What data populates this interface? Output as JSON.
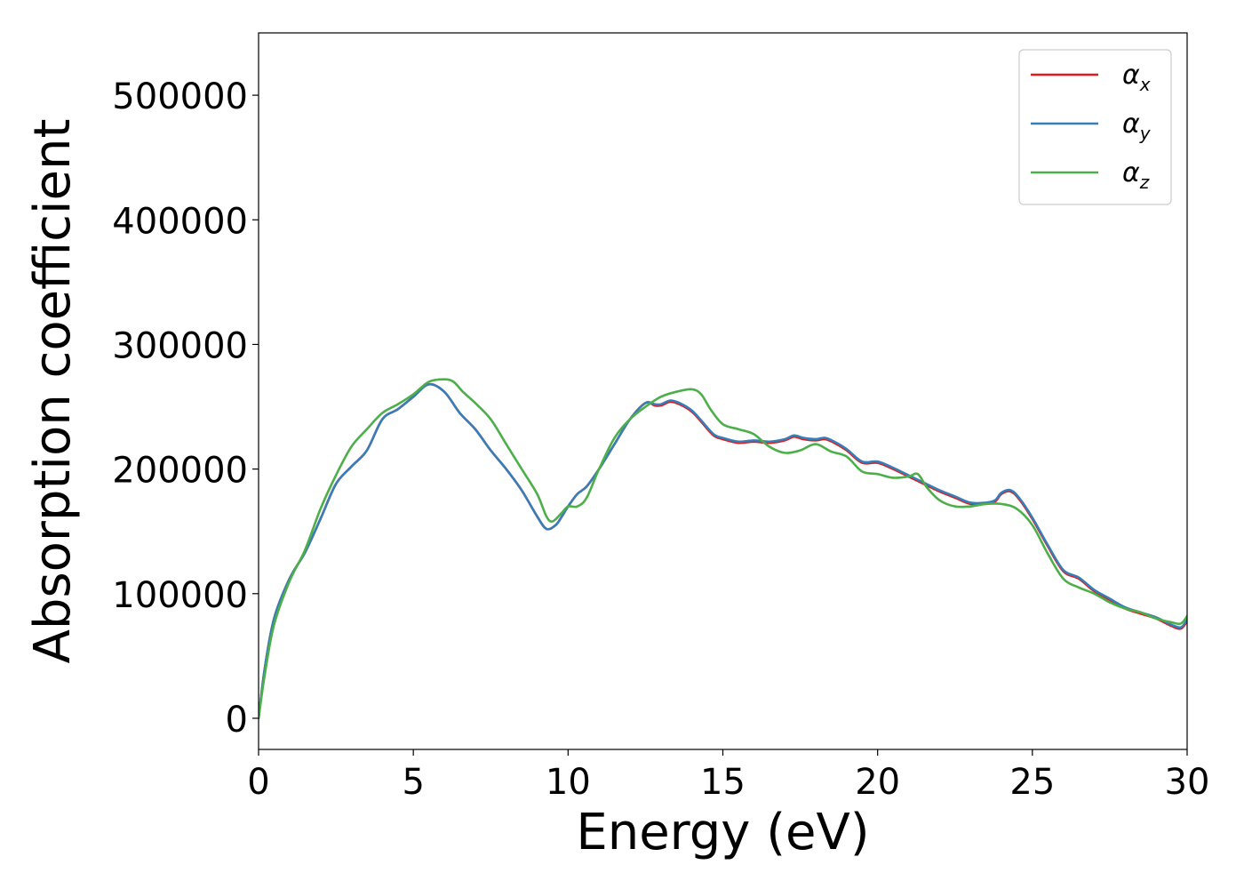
{
  "chart_data": {
    "type": "line",
    "title": "",
    "xlabel": "Energy (eV)",
    "ylabel": "Absorption coefficient",
    "xlim": [
      0,
      30
    ],
    "ylim": [
      -25000,
      550000
    ],
    "xticks": [
      0,
      5,
      10,
      15,
      20,
      25,
      30
    ],
    "yticks": [
      0,
      100000,
      200000,
      300000,
      400000,
      500000
    ],
    "grid": false,
    "legend_position": "top-right",
    "series": [
      {
        "name": "α",
        "subscript": "x",
        "color": "#e41a1c",
        "x": [
          0,
          0.2,
          0.5,
          1,
          1.5,
          2,
          2.5,
          3,
          3.5,
          4,
          4.5,
          5,
          5.5,
          6,
          6.5,
          7,
          7.5,
          8,
          8.5,
          9,
          9.3,
          9.6,
          9.8,
          10,
          10.3,
          10.6,
          11,
          11.5,
          12,
          12.5,
          12.8,
          13,
          13.3,
          13.6,
          14,
          14.3,
          14.7,
          15,
          15.5,
          16,
          16.5,
          17,
          17.3,
          17.6,
          18,
          18.3,
          18.6,
          19,
          19.5,
          20,
          20.5,
          21,
          21.5,
          22,
          22.5,
          23,
          23.5,
          23.8,
          24,
          24.3,
          24.6,
          25,
          25.5,
          26,
          26.5,
          27,
          27.5,
          28,
          28.5,
          29,
          29.5,
          29.8,
          30
        ],
        "y": [
          0,
          40000,
          80000,
          112000,
          133000,
          160000,
          188000,
          202000,
          215000,
          240000,
          248000,
          258000,
          268000,
          262000,
          245000,
          232000,
          215000,
          200000,
          183000,
          162000,
          152000,
          155000,
          162000,
          170000,
          180000,
          186000,
          200000,
          220000,
          240000,
          253000,
          251000,
          251000,
          254000,
          252000,
          246000,
          238000,
          227000,
          224000,
          221000,
          222000,
          221000,
          223000,
          226000,
          224000,
          223000,
          224000,
          221000,
          215000,
          205000,
          205000,
          200000,
          194000,
          188000,
          182000,
          177000,
          172000,
          172000,
          174000,
          180000,
          182000,
          175000,
          160000,
          138000,
          118000,
          112000,
          102000,
          95000,
          88000,
          84000,
          80000,
          74000,
          72000,
          78000
        ]
      },
      {
        "name": "α",
        "subscript": "y",
        "color": "#377eb8",
        "x": [
          0,
          0.2,
          0.5,
          1,
          1.5,
          2,
          2.5,
          3,
          3.5,
          4,
          4.5,
          5,
          5.5,
          6,
          6.5,
          7,
          7.5,
          8,
          8.5,
          9,
          9.3,
          9.6,
          9.8,
          10,
          10.3,
          10.6,
          11,
          11.5,
          12,
          12.5,
          12.8,
          13,
          13.3,
          13.6,
          14,
          14.3,
          14.7,
          15,
          15.5,
          16,
          16.5,
          17,
          17.3,
          17.6,
          18,
          18.3,
          18.6,
          19,
          19.5,
          20,
          20.5,
          21,
          21.5,
          22,
          22.5,
          23,
          23.5,
          23.8,
          24,
          24.3,
          24.6,
          25,
          25.5,
          26,
          26.5,
          27,
          27.5,
          28,
          28.5,
          29,
          29.5,
          29.8,
          30
        ],
        "y": [
          0,
          40000,
          80000,
          112000,
          133000,
          160000,
          188000,
          202000,
          215000,
          240000,
          248000,
          258000,
          268000,
          262000,
          245000,
          232000,
          215000,
          200000,
          183000,
          162000,
          152000,
          155000,
          162000,
          170000,
          180000,
          186000,
          200000,
          220000,
          240000,
          253000,
          252000,
          252000,
          255000,
          253000,
          247000,
          239000,
          228000,
          225000,
          222000,
          223000,
          222000,
          224000,
          227000,
          225000,
          224000,
          225000,
          222000,
          216000,
          206000,
          206000,
          201000,
          195000,
          189000,
          183000,
          178000,
          173000,
          173000,
          175000,
          181000,
          183000,
          176000,
          161000,
          139000,
          119000,
          113000,
          103000,
          96000,
          89000,
          85000,
          81000,
          75000,
          73000,
          79000
        ]
      },
      {
        "name": "α",
        "subscript": "z",
        "color": "#4daf4a",
        "x": [
          0,
          0.2,
          0.5,
          1,
          1.5,
          2,
          2.5,
          3,
          3.5,
          4,
          4.5,
          5,
          5.5,
          6,
          6.3,
          6.6,
          7,
          7.5,
          8,
          8.5,
          9,
          9.3,
          9.5,
          9.8,
          10,
          10.3,
          10.6,
          11,
          11.5,
          12,
          12.5,
          13,
          13.5,
          14,
          14.3,
          14.6,
          15,
          15.5,
          16,
          16.5,
          17,
          17.5,
          18,
          18.5,
          19,
          19.5,
          20,
          20.5,
          21,
          21.3,
          21.6,
          22,
          22.5,
          23,
          23.5,
          24,
          24.5,
          25,
          25.5,
          26,
          26.5,
          27,
          27.5,
          28,
          28.5,
          29,
          29.5,
          29.8,
          30
        ],
        "y": [
          0,
          35000,
          75000,
          110000,
          135000,
          168000,
          195000,
          218000,
          232000,
          245000,
          252000,
          260000,
          270000,
          272000,
          270000,
          262000,
          253000,
          240000,
          220000,
          200000,
          180000,
          162000,
          158000,
          165000,
          170000,
          170000,
          177000,
          200000,
          225000,
          240000,
          250000,
          258000,
          262000,
          264000,
          260000,
          248000,
          236000,
          232000,
          228000,
          218000,
          213000,
          215000,
          220000,
          214000,
          210000,
          198000,
          196000,
          193000,
          194000,
          196000,
          185000,
          175000,
          170000,
          170000,
          172000,
          172000,
          168000,
          155000,
          132000,
          112000,
          105000,
          100000,
          93000,
          88000,
          85000,
          80000,
          77000,
          76000,
          82000
        ]
      }
    ]
  }
}
